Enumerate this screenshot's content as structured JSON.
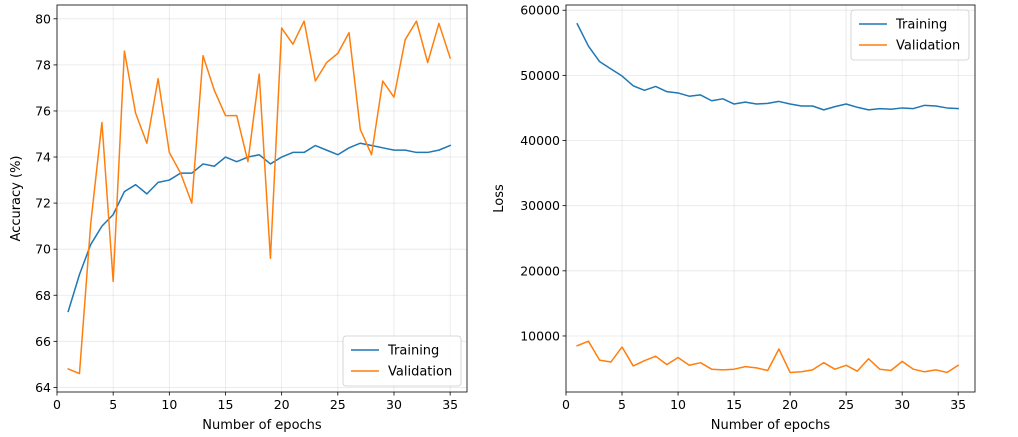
{
  "chart_data": [
    {
      "type": "line",
      "xlabel": "Number of epochs",
      "ylabel": "Accuracy (%)",
      "xlim": [
        0,
        36.5
      ],
      "ylim": [
        63.8,
        80.6
      ],
      "xticks": [
        0,
        5,
        10,
        15,
        20,
        25,
        30,
        35
      ],
      "yticks": [
        64,
        66,
        68,
        70,
        72,
        74,
        76,
        78,
        80
      ],
      "grid": true,
      "legend_position": "bottom-right",
      "x": [
        1,
        2,
        3,
        4,
        5,
        6,
        7,
        8,
        9,
        10,
        11,
        12,
        13,
        14,
        15,
        16,
        17,
        18,
        19,
        20,
        21,
        22,
        23,
        24,
        25,
        26,
        27,
        28,
        29,
        30,
        31,
        32,
        33,
        34,
        35
      ],
      "series": [
        {
          "name": "Training",
          "color": "#1f77b4",
          "values": [
            67.3,
            68.9,
            70.2,
            71.0,
            71.5,
            72.5,
            72.8,
            72.4,
            72.9,
            73.0,
            73.3,
            73.3,
            73.7,
            73.6,
            74.0,
            73.8,
            74.0,
            74.1,
            73.7,
            74.0,
            74.2,
            74.2,
            74.5,
            74.3,
            74.1,
            74.4,
            74.6,
            74.5,
            74.4,
            74.3,
            74.3,
            74.2,
            74.2,
            74.3,
            74.5
          ]
        },
        {
          "name": "Validation",
          "color": "#ff7f0e",
          "values": [
            64.8,
            64.6,
            71.1,
            75.5,
            68.6,
            78.6,
            75.9,
            74.6,
            77.4,
            74.2,
            73.3,
            72.0,
            78.4,
            76.9,
            75.8,
            75.8,
            73.8,
            77.6,
            69.6,
            79.6,
            78.9,
            79.9,
            77.3,
            78.1,
            78.5,
            79.4,
            75.2,
            74.1,
            77.3,
            76.6,
            79.1,
            79.9,
            78.1,
            79.8,
            78.3
          ]
        }
      ]
    },
    {
      "type": "line",
      "xlabel": "Number of epochs",
      "ylabel": "Loss",
      "xlim": [
        0,
        36.5
      ],
      "ylim": [
        1400,
        60800
      ],
      "xticks": [
        0,
        5,
        10,
        15,
        20,
        25,
        30,
        35
      ],
      "yticks": [
        10000,
        20000,
        30000,
        40000,
        50000,
        60000
      ],
      "grid": true,
      "legend_position": "top-right",
      "x": [
        1,
        2,
        3,
        4,
        5,
        6,
        7,
        8,
        9,
        10,
        11,
        12,
        13,
        14,
        15,
        16,
        17,
        18,
        19,
        20,
        21,
        22,
        23,
        24,
        25,
        26,
        27,
        28,
        29,
        30,
        31,
        32,
        33,
        34,
        35
      ],
      "series": [
        {
          "name": "Training",
          "color": "#1f77b4",
          "values": [
            57900,
            54500,
            52100,
            51000,
            49900,
            48400,
            47700,
            48300,
            47500,
            47300,
            46800,
            47000,
            46100,
            46400,
            45600,
            45900,
            45600,
            45700,
            46000,
            45600,
            45300,
            45300,
            44700,
            45200,
            45600,
            45100,
            44700,
            44900,
            44800,
            45000,
            44900,
            45400,
            45300,
            45000,
            44900
          ]
        },
        {
          "name": "Validation",
          "color": "#ff7f0e",
          "values": [
            8500,
            9200,
            6300,
            6000,
            8300,
            5400,
            6200,
            6900,
            5600,
            6700,
            5500,
            5900,
            4900,
            4800,
            4900,
            5300,
            5100,
            4700,
            8000,
            4400,
            4500,
            4800,
            5900,
            4900,
            5500,
            4600,
            6500,
            4900,
            4700,
            6100,
            4900,
            4500,
            4800,
            4400,
            5500
          ]
        }
      ]
    }
  ]
}
